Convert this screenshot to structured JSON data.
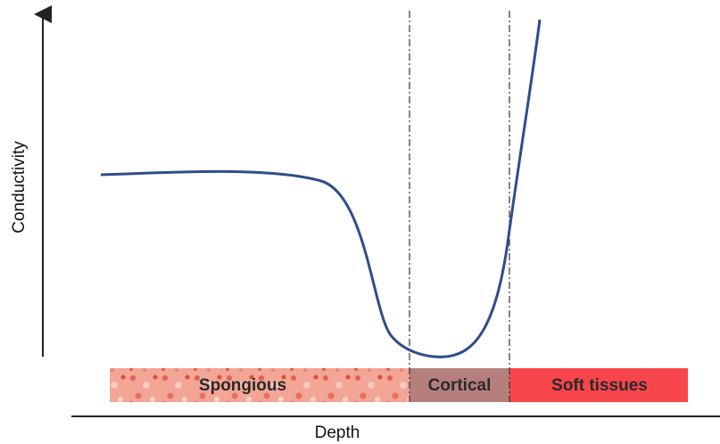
{
  "axes": {
    "y_label": "Conductivity",
    "x_label": "Depth"
  },
  "regions": [
    {
      "label": "Spongious"
    },
    {
      "label": "Cortical"
    },
    {
      "label": "Soft tissues"
    }
  ]
}
